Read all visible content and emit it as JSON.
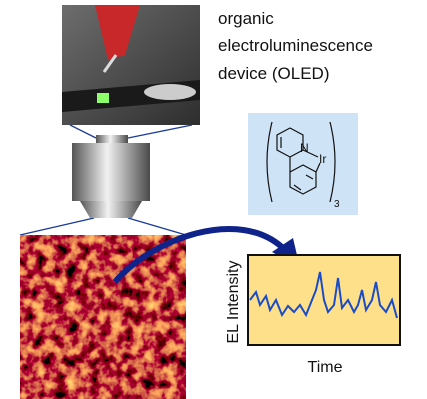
{
  "title": {
    "lines": [
      "organic",
      "electroluminescence",
      "device (OLED)"
    ]
  },
  "molecule": {
    "atoms": [
      "N",
      "Ir"
    ],
    "subscript": "3"
  },
  "plot": {
    "y_label": "EL Intensity",
    "x_label": "Time"
  }
}
